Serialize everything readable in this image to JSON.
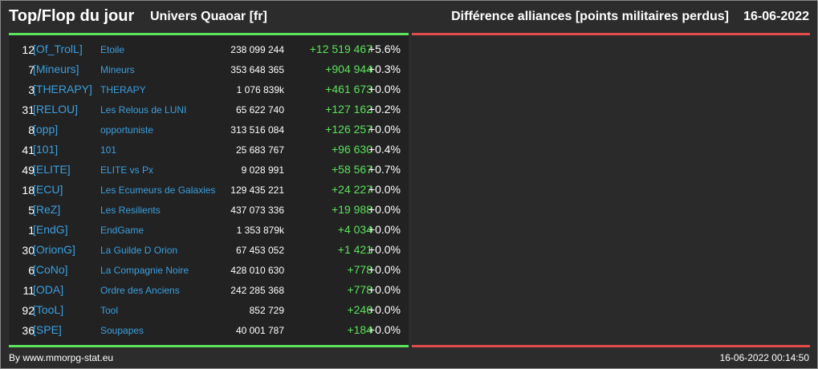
{
  "header": {
    "title": "Top/Flop du jour",
    "universe": "Univers Quaoar [fr]",
    "subtitle": "Différence alliances [points militaires perdus]",
    "date": "16-06-2022"
  },
  "rows": [
    {
      "rank": "12",
      "tag": "[Of_TrolL]",
      "name": "Etoile",
      "points": "238 099 244",
      "diff": "+12 519 467",
      "pct": "+5.6%"
    },
    {
      "rank": "7",
      "tag": "[Mineurs]",
      "name": "Mineurs",
      "points": "353 648 365",
      "diff": "+904 944",
      "pct": "+0.3%"
    },
    {
      "rank": "3",
      "tag": "[THERAPY]",
      "name": "THERAPY",
      "points": "1 076 839k",
      "diff": "+461 673",
      "pct": "+0.0%"
    },
    {
      "rank": "31",
      "tag": "[RELOU]",
      "name": "Les Relous de LUNI",
      "points": "65 622 740",
      "diff": "+127 162",
      "pct": "+0.2%"
    },
    {
      "rank": "8",
      "tag": "[opp]",
      "name": "opportuniste",
      "points": "313 516 084",
      "diff": "+126 257",
      "pct": "+0.0%"
    },
    {
      "rank": "41",
      "tag": "[101]",
      "name": "101",
      "points": "25 683 767",
      "diff": "+96 630",
      "pct": "+0.4%"
    },
    {
      "rank": "49",
      "tag": "[ELITE]",
      "name": "ELITE vs Px",
      "points": "9 028 991",
      "diff": "+58 567",
      "pct": "+0.7%"
    },
    {
      "rank": "18",
      "tag": "[ECU]",
      "name": "Les Ecumeurs de Galaxies",
      "points": "129 435 221",
      "diff": "+24 227",
      "pct": "+0.0%"
    },
    {
      "rank": "5",
      "tag": "[ReZ]",
      "name": "Les Resilients",
      "points": "437 073 336",
      "diff": "+19 988",
      "pct": "+0.0%"
    },
    {
      "rank": "1",
      "tag": "[EndG]",
      "name": "EndGame",
      "points": "1 353 879k",
      "diff": "+4 034",
      "pct": "+0.0%"
    },
    {
      "rank": "30",
      "tag": "[OrionG]",
      "name": "La Guilde D Orion",
      "points": "67 453 052",
      "diff": "+1 421",
      "pct": "+0.0%"
    },
    {
      "rank": "6",
      "tag": "[CoNo]",
      "name": "La Compagnie Noire",
      "points": "428 010 630",
      "diff": "+778",
      "pct": "+0.0%"
    },
    {
      "rank": "11",
      "tag": "[ODA]",
      "name": "Ordre des Anciens",
      "points": "242 285 368",
      "diff": "+778",
      "pct": "+0.0%"
    },
    {
      "rank": "92",
      "tag": "[TooL]",
      "name": "Tool",
      "points": "852 729",
      "diff": "+246",
      "pct": "+0.0%"
    },
    {
      "rank": "36",
      "tag": "[SPE]",
      "name": "Soupapes",
      "points": "40 001 787",
      "diff": "+184",
      "pct": "+0.0%"
    }
  ],
  "footer": {
    "credit": "By www.mmorpg-stat.eu",
    "timestamp": "16-06-2022 00:14:50"
  },
  "colors": {
    "top_accent": "#5be35b",
    "flop_accent": "#e34b4b",
    "tag_color": "#3aa0e0"
  }
}
